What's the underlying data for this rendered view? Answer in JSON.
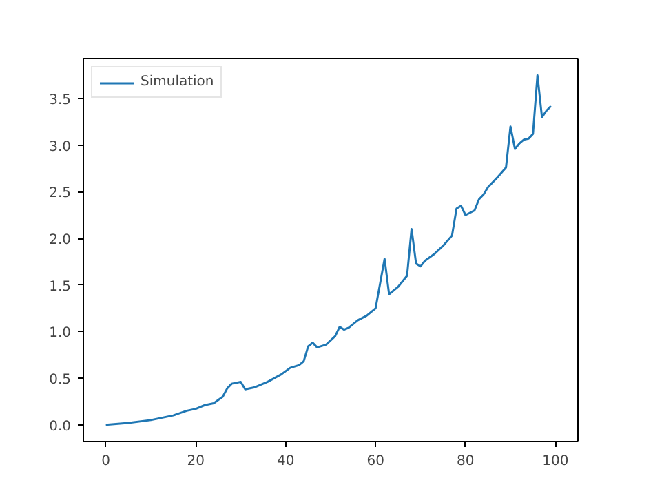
{
  "chart_data": {
    "type": "line",
    "xlim": [
      -5,
      105
    ],
    "ylim": [
      -0.18,
      3.93
    ],
    "xticks": [
      0,
      20,
      40,
      60,
      80,
      100
    ],
    "yticks": [
      {
        "value": 0,
        "label": "0.0"
      },
      0.5,
      {
        "value": 1,
        "label": "1.0"
      },
      1.5,
      {
        "value": 2,
        "label": "2.0"
      },
      2.5,
      {
        "value": 3,
        "label": "3.0"
      },
      3.5
    ],
    "grid": false,
    "legend": "top left",
    "marker": "none",
    "line_style": "solid",
    "series": [
      {
        "name": "Simulation",
        "color": "#1f77b4",
        "x": [
          0,
          5,
          10,
          15,
          18,
          20,
          22,
          24,
          26,
          27,
          28,
          30,
          31,
          33,
          36,
          39,
          41,
          43,
          44,
          45,
          46,
          47,
          49,
          51,
          52,
          53,
          54,
          56,
          58,
          60,
          62,
          63,
          65,
          67,
          68,
          69,
          70,
          71,
          73,
          75,
          77,
          78,
          79,
          80,
          82,
          83,
          84,
          85,
          87,
          89,
          90,
          91,
          92,
          93,
          94,
          95,
          96,
          97,
          98,
          99
        ],
        "values": [
          0,
          0.02,
          0.05,
          0.1,
          0.15,
          0.17,
          0.21,
          0.23,
          0.3,
          0.39,
          0.44,
          0.46,
          0.38,
          0.4,
          0.46,
          0.54,
          0.61,
          0.64,
          0.68,
          0.84,
          0.88,
          0.83,
          0.86,
          0.95,
          1.05,
          1.02,
          1.04,
          1.12,
          1.17,
          1.25,
          1.78,
          1.4,
          1.48,
          1.6,
          2.1,
          1.73,
          1.7,
          1.76,
          1.83,
          1.92,
          2.03,
          2.32,
          2.35,
          2.25,
          2.3,
          2.42,
          2.47,
          2.55,
          2.65,
          2.76,
          3.2,
          2.96,
          3.02,
          3.06,
          3.07,
          3.12,
          3.75,
          3.3,
          3.37,
          3.42
        ]
      }
    ]
  }
}
